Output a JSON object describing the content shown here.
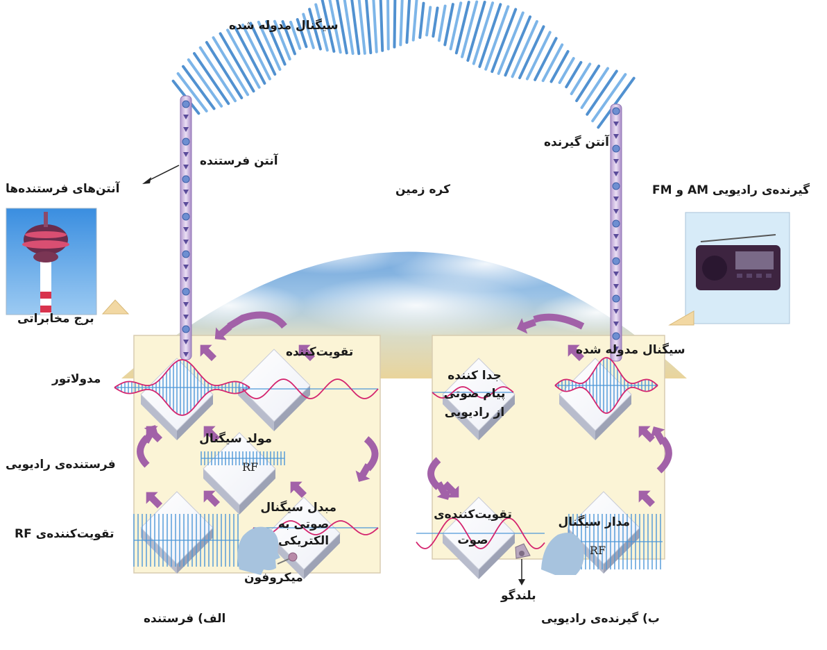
{
  "labels": {
    "modulated_signal_top": "سیگنال مدوله شده",
    "tx_antenna": "آنتن فرستنده",
    "rx_antenna": "آنتن گیرنده",
    "tx_antennas": "آنتن‌های فرستنده‌ها",
    "earth": "کره زمین",
    "am_fm_receiver": "گیرنده‌ی رادیویی AM و FM",
    "telecom_tower": "برج مخابراتی",
    "modulator": "مدولاتور",
    "amplifier": "تقویت‌کننده",
    "rf_generator_1": "مولد سیگنال",
    "rf_generator_2": "RF",
    "radio_transmitter": "فرستنده‌ی رادیویی",
    "rf_amplifier": "تقویت‌کننده‌ی RF",
    "audio_converter_1": "مبدل سیگنال",
    "audio_converter_2": "صوتی به",
    "audio_converter_3": "الکتریکی",
    "microphone": "میکروفون",
    "transmitter_caption": "الف) فرستنده",
    "modulated_signal_rx": "سیگنال مدوله شده",
    "demodulator_1": "جدا کننده",
    "demodulator_2": "پیام صوتی",
    "demodulator_3": "از رادیویی",
    "audio_amp_1": "تقویت‌کننده‌ی",
    "audio_amp_2": "صوت",
    "rf_circuit_1": "مدار سیگنال",
    "rf_circuit_2": "RF",
    "speaker": "بلندگو",
    "receiver_caption": "ب) گیرنده‌ی رادیویی"
  },
  "colors": {
    "wave_blue": "#4d97d8",
    "signal_magenta": "#d4246e",
    "arrow_purple": "#a261a8",
    "panel_bg": "#fbf4d6",
    "earth_sky": "#78aede",
    "earth_land": "#e6d29a",
    "antenna_fill": "#c9b3dc"
  },
  "icons": {
    "tower": "telecom-tower-photo",
    "radio": "portable-radio-photo",
    "head": "listener-head-icon",
    "mic": "microphone-icon",
    "speaker": "speaker-icon"
  }
}
